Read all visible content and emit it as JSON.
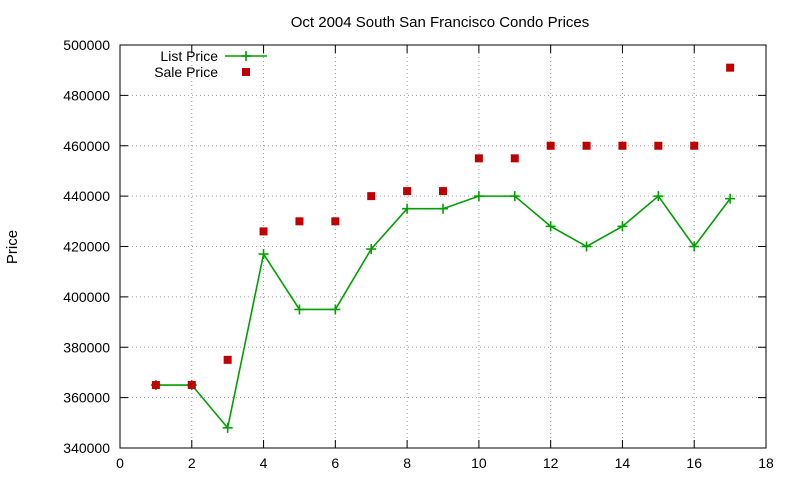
{
  "chart_data": {
    "type": "line",
    "title": "Oct 2004 South San Francisco Condo Prices",
    "xlabel": "",
    "ylabel": "Price",
    "xlim": [
      0,
      18
    ],
    "ylim": [
      340000,
      500000
    ],
    "x_ticks": [
      0,
      2,
      4,
      6,
      8,
      10,
      12,
      14,
      16,
      18
    ],
    "y_ticks": [
      340000,
      360000,
      380000,
      400000,
      420000,
      440000,
      460000,
      480000,
      500000
    ],
    "grid": true,
    "legend_position": "top-left",
    "series": [
      {
        "name": "List Price",
        "style": "line-with-plus-markers",
        "color": "#00a000",
        "x": [
          1,
          2,
          3,
          4,
          5,
          6,
          7,
          8,
          9,
          10,
          11,
          12,
          13,
          14,
          15,
          16,
          17
        ],
        "y": [
          365000,
          365000,
          348000,
          417000,
          395000,
          395000,
          419000,
          435000,
          435000,
          440000,
          440000,
          428000,
          420000,
          428000,
          440000,
          420000,
          439000
        ]
      },
      {
        "name": "Sale Price",
        "style": "square-markers",
        "color": "#c00000",
        "x": [
          1,
          2,
          3,
          4,
          5,
          6,
          7,
          8,
          9,
          10,
          11,
          12,
          13,
          14,
          15,
          16,
          17
        ],
        "y": [
          365000,
          365000,
          375000,
          426000,
          430000,
          430000,
          440000,
          442000,
          442000,
          455000,
          455000,
          460000,
          460000,
          460000,
          460000,
          460000,
          491000
        ]
      }
    ]
  }
}
